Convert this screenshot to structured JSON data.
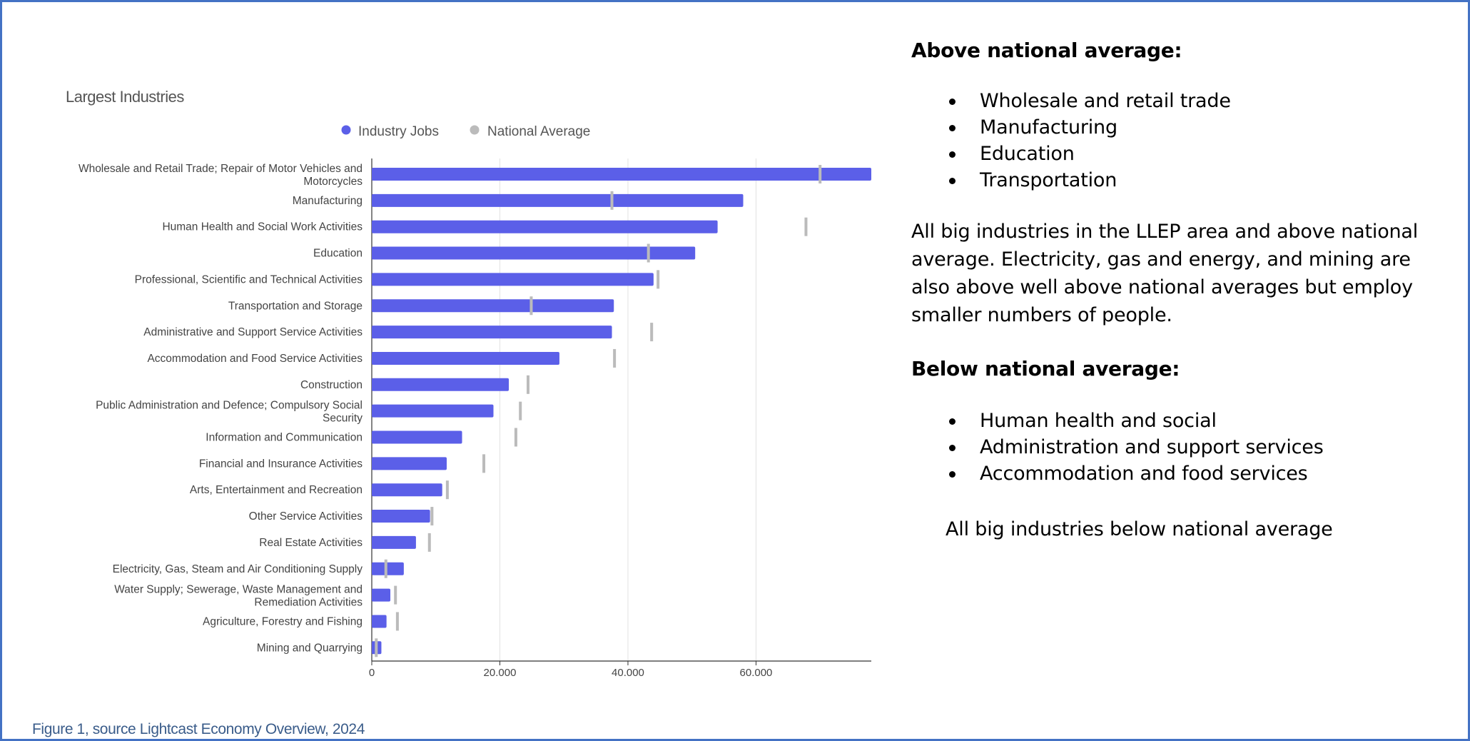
{
  "chart_data": {
    "type": "bar",
    "orientation": "horizontal",
    "title": "Largest Industries",
    "legend": {
      "placement": "top-center",
      "entries": [
        "Industry Jobs",
        "National Average"
      ]
    },
    "series": [
      {
        "name": "Industry Jobs",
        "color": "#5b5fe8",
        "values": [
          78000,
          58000,
          54000,
          50500,
          44000,
          37800,
          37500,
          29300,
          21400,
          19000,
          14100,
          11700,
          11000,
          9100,
          6900,
          5000,
          2900,
          2300,
          1500
        ]
      },
      {
        "name": "National Average",
        "color": "#bbbbbb",
        "values": [
          70000,
          37500,
          67800,
          43200,
          44700,
          24900,
          43700,
          37900,
          24400,
          23200,
          22500,
          17500,
          11800,
          9400,
          9000,
          2200,
          3700,
          4000,
          700
        ]
      }
    ],
    "categories": [
      [
        "Wholesale and Retail Trade; Repair of Motor Vehicles and",
        "Motorcycles"
      ],
      [
        "Manufacturing"
      ],
      [
        "Human Health and Social Work Activities"
      ],
      [
        "Education"
      ],
      [
        "Professional, Scientific and Technical Activities"
      ],
      [
        "Transportation and Storage"
      ],
      [
        "Administrative and Support Service Activities"
      ],
      [
        "Accommodation and Food Service Activities"
      ],
      [
        "Construction"
      ],
      [
        "Public Administration and Defence; Compulsory Social",
        "Security"
      ],
      [
        "Information and Communication"
      ],
      [
        "Financial and Insurance Activities"
      ],
      [
        "Arts, Entertainment and Recreation"
      ],
      [
        "Other Service Activities"
      ],
      [
        "Real Estate Activities"
      ],
      [
        "Electricity, Gas, Steam and Air Conditioning Supply"
      ],
      [
        "Water Supply; Sewerage, Waste Management and",
        "Remediation Activities"
      ],
      [
        "Agriculture, Forestry and Fishing"
      ],
      [
        "Mining and Quarrying"
      ]
    ],
    "xlim": [
      0,
      78000
    ],
    "xticks": [
      0,
      20000,
      40000,
      60000
    ],
    "xtick_labels": [
      "0",
      "20.000",
      "40.000",
      "60.000"
    ],
    "grid": true
  },
  "side": {
    "above_heading": "Above national average:",
    "above_items": [
      "Wholesale and retail trade",
      "Manufacturing",
      "Education",
      "Transportation"
    ],
    "above_paragraph": "All big industries in the LLEP area and above national average. Electricity, gas and energy, and mining are also above well above national averages but employ smaller numbers of people.",
    "below_heading": "Below national average:",
    "below_items": [
      "Human health and social",
      "Administration and support services",
      "Accommodation and food services"
    ],
    "below_paragraph": "All big industries below national average"
  },
  "caption": "Figure 1, source Lightcast Economy Overview, 2024"
}
